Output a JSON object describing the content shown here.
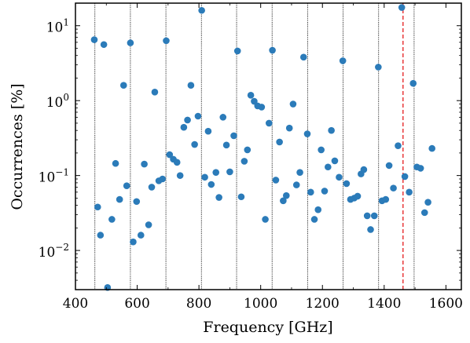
{
  "chart_data": {
    "type": "scatter",
    "xlabel": "Frequency [GHz]",
    "ylabel": "Occurrences [%]",
    "xlim": [
      400,
      1650
    ],
    "ylim": [
      0.003,
      20
    ],
    "yscale": "log",
    "grid": false,
    "x_ticks": [
      {
        "value": 400,
        "label": "400"
      },
      {
        "value": 600,
        "label": "600"
      },
      {
        "value": 800,
        "label": "800"
      },
      {
        "value": 1000,
        "label": "1000"
      },
      {
        "value": 1200,
        "label": "1200"
      },
      {
        "value": 1400,
        "label": "1400"
      },
      {
        "value": 1600,
        "label": "1600"
      }
    ],
    "y_ticks": [
      {
        "value": 0.01,
        "base": "10",
        "exp": "−2"
      },
      {
        "value": 0.1,
        "base": "10",
        "exp": "−1"
      },
      {
        "value": 1,
        "base": "10",
        "exp": "0"
      },
      {
        "value": 10,
        "base": "10",
        "exp": "1"
      }
    ],
    "vertical_lines": [
      {
        "x": 463,
        "style": "dotted-black"
      },
      {
        "x": 578,
        "style": "dotted-black"
      },
      {
        "x": 693,
        "style": "dotted-black"
      },
      {
        "x": 808,
        "style": "dotted-black"
      },
      {
        "x": 922,
        "style": "dotted-black"
      },
      {
        "x": 1037,
        "style": "dotted-black"
      },
      {
        "x": 1152,
        "style": "dotted-black"
      },
      {
        "x": 1267,
        "style": "dotted-black"
      },
      {
        "x": 1382,
        "style": "dotted-black"
      },
      {
        "x": 1497,
        "style": "dotted-black"
      },
      {
        "x": 1461,
        "style": "dashed-red"
      }
    ],
    "point_color": "#2b7bb9",
    "points": [
      [
        461,
        6.5
      ],
      [
        472,
        0.038
      ],
      [
        481,
        0.016
      ],
      [
        492,
        5.6
      ],
      [
        504,
        0.0032
      ],
      [
        518,
        0.026
      ],
      [
        530,
        0.145
      ],
      [
        543,
        0.048
      ],
      [
        556,
        1.6
      ],
      [
        566,
        0.073
      ],
      [
        578,
        5.9
      ],
      [
        587,
        0.013
      ],
      [
        598,
        0.045
      ],
      [
        612,
        0.016
      ],
      [
        623,
        0.142
      ],
      [
        637,
        0.022
      ],
      [
        647,
        0.07
      ],
      [
        657,
        1.3
      ],
      [
        670,
        0.085
      ],
      [
        682,
        0.09
      ],
      [
        694,
        6.3
      ],
      [
        705,
        0.19
      ],
      [
        717,
        0.165
      ],
      [
        729,
        0.15
      ],
      [
        739,
        0.1
      ],
      [
        751,
        0.44
      ],
      [
        763,
        0.55
      ],
      [
        774,
        1.6
      ],
      [
        786,
        0.26
      ],
      [
        797,
        0.62
      ],
      [
        809,
        16.0
      ],
      [
        819,
        0.095
      ],
      [
        830,
        0.39
      ],
      [
        840,
        0.076
      ],
      [
        855,
        0.11
      ],
      [
        865,
        0.051
      ],
      [
        878,
        0.6
      ],
      [
        889,
        0.255
      ],
      [
        900,
        0.112
      ],
      [
        913,
        0.34
      ],
      [
        925,
        4.6
      ],
      [
        937,
        0.052
      ],
      [
        947,
        0.155
      ],
      [
        957,
        0.22
      ],
      [
        968,
        1.18
      ],
      [
        979,
        0.98
      ],
      [
        990,
        0.85
      ],
      [
        1003,
        0.82
      ],
      [
        1015,
        0.026
      ],
      [
        1027,
        0.5
      ],
      [
        1038,
        4.7
      ],
      [
        1049,
        0.087
      ],
      [
        1061,
        0.28
      ],
      [
        1073,
        0.046
      ],
      [
        1083,
        0.054
      ],
      [
        1093,
        0.43
      ],
      [
        1105,
        0.9
      ],
      [
        1116,
        0.075
      ],
      [
        1127,
        0.11
      ],
      [
        1139,
        3.8
      ],
      [
        1151,
        0.36
      ],
      [
        1162,
        0.06
      ],
      [
        1174,
        0.026
      ],
      [
        1186,
        0.035
      ],
      [
        1196,
        0.22
      ],
      [
        1207,
        0.062
      ],
      [
        1218,
        0.13
      ],
      [
        1229,
        0.4
      ],
      [
        1240,
        0.157
      ],
      [
        1254,
        0.095
      ],
      [
        1266,
        3.4
      ],
      [
        1278,
        0.078
      ],
      [
        1291,
        0.048
      ],
      [
        1303,
        0.05
      ],
      [
        1314,
        0.053
      ],
      [
        1325,
        0.105
      ],
      [
        1334,
        0.12
      ],
      [
        1345,
        0.029
      ],
      [
        1356,
        0.019
      ],
      [
        1368,
        0.029
      ],
      [
        1381,
        2.8
      ],
      [
        1393,
        0.046
      ],
      [
        1405,
        0.048
      ],
      [
        1416,
        0.136
      ],
      [
        1430,
        0.068
      ],
      [
        1445,
        0.25
      ],
      [
        1457,
        17.5
      ],
      [
        1467,
        0.097
      ],
      [
        1481,
        0.06
      ],
      [
        1494,
        1.7
      ],
      [
        1506,
        0.13
      ],
      [
        1518,
        0.125
      ],
      [
        1531,
        0.032
      ],
      [
        1542,
        0.044
      ],
      [
        1555,
        0.23
      ]
    ]
  }
}
